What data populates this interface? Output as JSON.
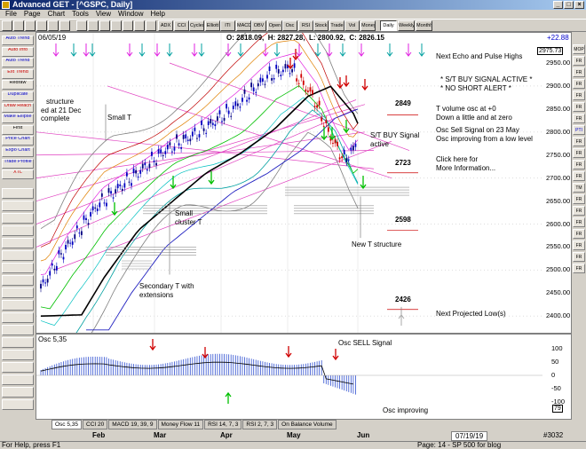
{
  "window": {
    "title": "Advanced GET - [^GSPC, Daily]",
    "min": "_",
    "max": "□",
    "close": "×"
  },
  "menu": [
    "File",
    "Page",
    "Chart",
    "Tools",
    "View",
    "Window",
    "Help"
  ],
  "toolbar": [
    {
      "label": "ADX DMI"
    },
    {
      "label": "CCI"
    },
    {
      "label": "Cycles"
    },
    {
      "label": "Elliott Trig"
    },
    {
      "label": "ITI"
    },
    {
      "label": "MACD"
    },
    {
      "label": "OBV"
    },
    {
      "label": "Open Close"
    },
    {
      "label": "Osc"
    },
    {
      "label": "RSI"
    },
    {
      "label": "Stock"
    },
    {
      "label": "Trade Stock"
    },
    {
      "label": "Vol"
    },
    {
      "label": "Money Flow"
    },
    {
      "label": "XTL"
    },
    {
      "label": "Daily",
      "selected": true
    },
    {
      "label": "Weekly"
    },
    {
      "label": "Monthly"
    }
  ],
  "sidebar": [
    "Auto Trend",
    "Auto Info",
    "Auto Trend",
    "Ext Trend",
    "Redraw",
    "Duplicate",
    "Draw Reach",
    "Make Ellipse",
    "First",
    "Price Chart",
    "Expo Chart",
    "Trade Profile",
    "XTL"
  ],
  "right_tools": [
    "MOP",
    "FR",
    "FR",
    "FR",
    "FR",
    "FR",
    "FR",
    "PTI",
    "FR",
    "FR",
    "FR",
    "FR",
    "TM",
    "FR",
    "FR",
    "FR",
    "FR",
    "FR",
    "FR",
    "FR"
  ],
  "chart": {
    "date": "06/05/19",
    "ohlc": {
      "o_label": "O:",
      "o": "2818.09",
      "h_label": "H:",
      "h": "2827.28",
      "l_label": "L:",
      "l": "2800.92",
      "c_label": "C:",
      "c": "2826.15"
    },
    "change": "+22.88",
    "last_price": "2975.73",
    "y_ticks": [
      "2950.00",
      "2900.00",
      "2850.00",
      "2800.00",
      "2750.00",
      "2700.00",
      "2650.00",
      "2600.00",
      "2550.00",
      "2500.00",
      "2450.00",
      "2400.00"
    ],
    "targets": [
      "2849",
      "2723",
      "2598",
      "2426"
    ],
    "annotations": {
      "structure": "structure",
      "complete": "ed at 21 Dec complete",
      "small_t": "Small T",
      "small_cluster": "Small cluster T",
      "secondary_t": "Secondary  T with extensions",
      "new_t": "New T structure",
      "st_buy": "S/T BUY Signal active",
      "echo": "Next Echo and Pulse Highs",
      "buy_active": "* S/T BUY SIGNAL ACTIVE *",
      "no_short": "* NO SHORT ALERT *",
      "tvol1": "T volume osc at +0",
      "tvol2": "Down a little and at zero",
      "osc_sell1": "Osc Sell Signal on 23 May",
      "osc_sell2": "Osc improving from a low level",
      "click1": "Click here for",
      "click2": "More Information...",
      "next_low": "Next Projected Low(s)"
    }
  },
  "oscillator": {
    "title": "Osc 5,35",
    "y_ticks": [
      "100",
      "50",
      "0",
      "-50",
      "-100"
    ],
    "current": "79",
    "sell_label": "Osc SELL Signal",
    "improving_label": "Osc improving"
  },
  "tabs": [
    "Osc 5,35",
    "CCI 20",
    "MACD 19, 39, 9",
    "Money Flow 11",
    "RSI 14, 7, 3",
    "RSI 2, 7, 3",
    "On Balance Volume"
  ],
  "months": [
    "Feb",
    "Mar",
    "Apr",
    "May",
    "Jun"
  ],
  "last_date": "07/19/19",
  "page_no": "#3032",
  "status": {
    "left": "For Help, press F1",
    "right": "Page: 14 - SP 500 for blog"
  }
}
